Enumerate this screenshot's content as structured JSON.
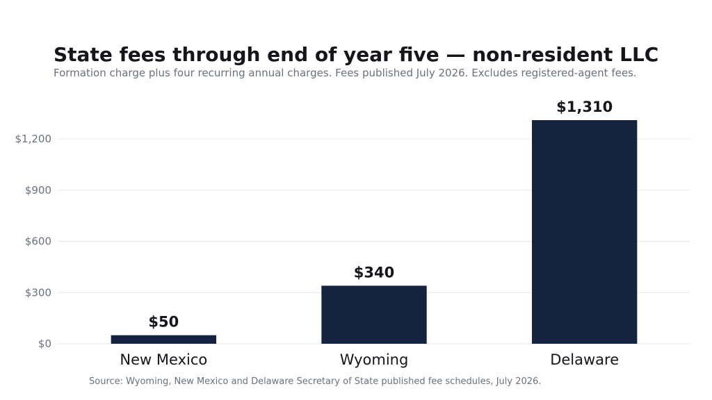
{
  "chart_data": {
    "type": "bar",
    "title": "State fees through end of year five — non-resident LLC",
    "subtitle": "Formation charge plus four recurring annual charges. Fees published July 2026. Excludes registered-agent fees.",
    "source": "Source: Wyoming, New Mexico and Delaware Secretary of State published fee schedules, July 2026.",
    "categories": [
      "New Mexico",
      "Wyoming",
      "Delaware"
    ],
    "values": [
      50,
      340,
      1310
    ],
    "data_labels": [
      "$50",
      "$340",
      "$1,310"
    ],
    "ylim": [
      0,
      1310
    ],
    "yticks": [
      0,
      300,
      600,
      900,
      1200
    ],
    "ytick_labels": [
      "$0",
      "$300",
      "$600",
      "$900",
      "$1,200"
    ],
    "xlabel": "",
    "ylabel": "",
    "grid": true,
    "legend": "none",
    "colors": {
      "bar": "#14233f",
      "grid": "#e6e8ec",
      "title": "#14161b",
      "muted": "#6b7080"
    }
  }
}
